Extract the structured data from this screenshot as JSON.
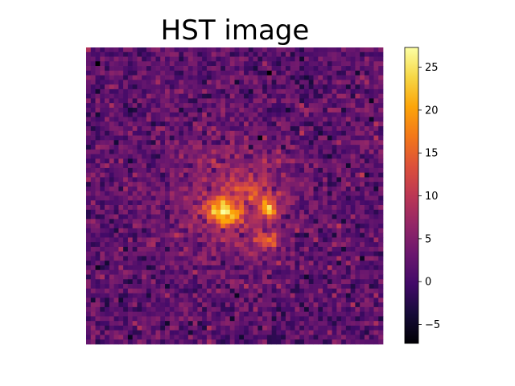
{
  "chart_data": {
    "type": "heatmap",
    "title": "HST image",
    "xlabel": "",
    "ylabel": "",
    "colormap": "inferno",
    "colorbar": {
      "ticks": [
        "−5",
        "0",
        "5",
        "10",
        "15",
        "20",
        "25"
      ],
      "tick_values": [
        -5,
        0,
        5,
        10,
        15,
        20,
        25
      ],
      "range": [
        -7.2,
        27.3
      ]
    },
    "image_size": [
      64,
      64
    ],
    "noise_mean": 2.0,
    "noise_sigma": 2.5,
    "components": [
      {
        "center": [
          31.5,
          32.5
        ],
        "sigma": 9.0,
        "peak": 6.0
      },
      {
        "center": [
          28.5,
          35.0
        ],
        "sigma": 1.8,
        "peak": 16.0
      },
      {
        "center": [
          31.5,
          36.5
        ],
        "sigma": 1.8,
        "peak": 12.0
      },
      {
        "center": [
          39.5,
          35.0
        ],
        "sigma": 1.5,
        "peak": 15.0
      },
      {
        "center": [
          39.0,
          41.5
        ],
        "sigma": 1.8,
        "peak": 10.0
      },
      {
        "center": [
          37.5,
          31.0
        ],
        "sigma": 2.0,
        "peak": 6.0
      },
      {
        "center": [
          33.5,
          30.5
        ],
        "sigma": 2.0,
        "peak": 5.0
      }
    ],
    "grid": false,
    "legend": "none"
  },
  "colors": {
    "background": "#ffffff",
    "axes_edge": "#000000"
  }
}
